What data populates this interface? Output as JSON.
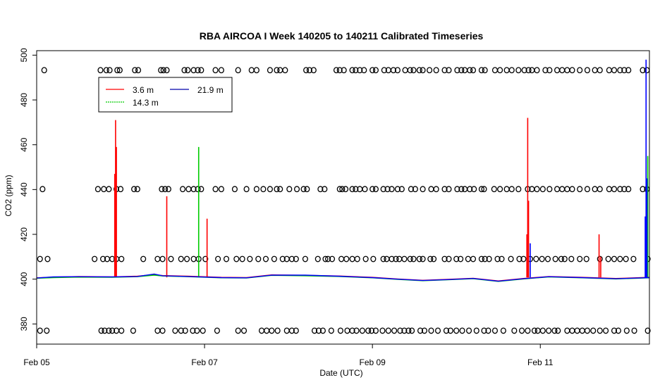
{
  "chart_data": {
    "type": "line",
    "title": "RBA AIRCOA I  Week 140205 to 140211  Calibrated Timeseries",
    "xlabel": "Date (UTC)",
    "ylabel": "CO2 (ppm)",
    "xlim": [
      0,
      7.3
    ],
    "ylim": [
      371,
      502
    ],
    "x_ticks": [
      {
        "value": 0,
        "label": "Feb 05"
      },
      {
        "value": 2,
        "label": "Feb 07"
      },
      {
        "value": 4,
        "label": "Feb 09"
      },
      {
        "value": 6,
        "label": "Feb 11"
      }
    ],
    "y_ticks": [
      380,
      400,
      420,
      440,
      460,
      480,
      500
    ],
    "grid": false,
    "legend_position": "top-left",
    "series": [
      {
        "name": "3.6 m",
        "color": "#ff0000",
        "baseline": [
          [
            0,
            400.6
          ],
          [
            0.2,
            400.9
          ],
          [
            0.5,
            401.2
          ],
          [
            0.9,
            401
          ],
          [
            1.2,
            401.3
          ],
          [
            1.4,
            402
          ],
          [
            1.5,
            401.6
          ],
          [
            1.8,
            401.3
          ],
          [
            2.2,
            400.8
          ],
          [
            2.5,
            400.7
          ],
          [
            2.8,
            401.9
          ],
          [
            3.2,
            401.7
          ],
          [
            3.6,
            401.4
          ],
          [
            4,
            400.8
          ],
          [
            4.3,
            400.1
          ],
          [
            4.6,
            399.5
          ],
          [
            4.9,
            399.9
          ],
          [
            5.2,
            400.4
          ],
          [
            5.5,
            399.2
          ],
          [
            5.8,
            400.3
          ],
          [
            6.1,
            401.2
          ],
          [
            6.5,
            400.8
          ],
          [
            6.9,
            400.3
          ],
          [
            7.3,
            400.8
          ]
        ],
        "spikes": [
          [
            0.94,
            471
          ],
          [
            0.95,
            459
          ],
          [
            0.93,
            447
          ],
          [
            1.55,
            437
          ],
          [
            2.03,
            427
          ],
          [
            5.85,
            472
          ],
          [
            5.86,
            435
          ],
          [
            5.84,
            420
          ],
          [
            6.7,
            420
          ],
          [
            6.72,
            410
          ]
        ]
      },
      {
        "name": "14.3 m",
        "color": "#00cc00",
        "baseline": [
          [
            0,
            400.4
          ],
          [
            0.2,
            400.7
          ],
          [
            0.5,
            400.9
          ],
          [
            0.9,
            400.8
          ],
          [
            1.2,
            401.1
          ],
          [
            1.4,
            401.8
          ],
          [
            1.5,
            401.4
          ],
          [
            1.8,
            401.1
          ],
          [
            2.2,
            400.6
          ],
          [
            2.5,
            400.5
          ],
          [
            2.8,
            401.7
          ],
          [
            3.2,
            401.5
          ],
          [
            3.6,
            401.2
          ],
          [
            4,
            400.6
          ],
          [
            4.3,
            399.9
          ],
          [
            4.6,
            399.3
          ],
          [
            4.9,
            399.7
          ],
          [
            5.2,
            400.2
          ],
          [
            5.5,
            399
          ],
          [
            5.8,
            400.1
          ],
          [
            6.1,
            401
          ],
          [
            6.5,
            400.6
          ],
          [
            6.9,
            400.1
          ],
          [
            7.3,
            400.6
          ]
        ],
        "spikes": [
          [
            1.93,
            459
          ],
          [
            7.28,
            455
          ],
          [
            7.27,
            430
          ]
        ]
      },
      {
        "name": "21.9 m",
        "color": "#0000ff",
        "baseline": [
          [
            0,
            400.5
          ],
          [
            0.2,
            401
          ],
          [
            0.5,
            401.1
          ],
          [
            0.9,
            401
          ],
          [
            1.2,
            401.2
          ],
          [
            1.4,
            402.3
          ],
          [
            1.5,
            401.5
          ],
          [
            1.8,
            401.2
          ],
          [
            2.2,
            400.7
          ],
          [
            2.5,
            400.6
          ],
          [
            2.8,
            401.8
          ],
          [
            3.2,
            401.8
          ],
          [
            3.6,
            401.3
          ],
          [
            4,
            400.7
          ],
          [
            4.3,
            400
          ],
          [
            4.6,
            399.4
          ],
          [
            4.9,
            399.8
          ],
          [
            5.2,
            400.3
          ],
          [
            5.5,
            399.1
          ],
          [
            5.8,
            400.2
          ],
          [
            6.1,
            401.1
          ],
          [
            6.5,
            400.7
          ],
          [
            6.9,
            400.2
          ],
          [
            7.3,
            400.7
          ]
        ],
        "spikes": [
          [
            7.26,
            498
          ],
          [
            7.27,
            445
          ],
          [
            7.25,
            428
          ],
          [
            5.88,
            416
          ]
        ]
      }
    ],
    "calibration_points": {
      "marker": "open-circle",
      "levels": [
        {
          "y": 493.3,
          "x": [
            0.09,
            0.76,
            0.83,
            0.87,
            0.96,
            0.99,
            1.17,
            1.21,
            1.48,
            1.51,
            1.55,
            1.76,
            1.8,
            1.87,
            1.92,
            1.96,
            2.13,
            2.2,
            2.4,
            2.56,
            2.62,
            2.78,
            2.86,
            2.9,
            2.96,
            3.21,
            3.25,
            3.3,
            3.57,
            3.61,
            3.66,
            3.76,
            3.8,
            3.85,
            3.9,
            4,
            4.04,
            4.14,
            4.19,
            4.25,
            4.3,
            4.39,
            4.45,
            4.49,
            4.56,
            4.6,
            4.68,
            4.76,
            4.86,
            4.91,
            5.01,
            5.06,
            5.1,
            5.16,
            5.2,
            5.3,
            5.34,
            5.46,
            5.52,
            5.6,
            5.66,
            5.74,
            5.81,
            5.86,
            5.9,
            5.96,
            6.06,
            6.11,
            6.2,
            6.26,
            6.32,
            6.38,
            6.47,
            6.56,
            6.65,
            6.71,
            6.82,
            6.88,
            6.95,
            7,
            7.05,
            7.22,
            7.27
          ]
        },
        {
          "y": 440.2,
          "x": [
            0.07,
            0.73,
            0.8,
            0.86,
            0.95,
            1,
            1.16,
            1.2,
            1.49,
            1.53,
            1.57,
            1.74,
            1.81,
            1.87,
            1.92,
            1.96,
            2.13,
            2.2,
            2.36,
            2.5,
            2.62,
            2.7,
            2.78,
            2.86,
            2.9,
            3.01,
            3.1,
            3.18,
            3.22,
            3.38,
            3.43,
            3.61,
            3.64,
            3.68,
            3.76,
            3.8,
            3.85,
            3.91,
            4,
            4.04,
            4.13,
            4.18,
            4.23,
            4.3,
            4.35,
            4.46,
            4.51,
            4.6,
            4.7,
            4.76,
            4.86,
            4.91,
            5.01,
            5.06,
            5.1,
            5.16,
            5.21,
            5.3,
            5.33,
            5.45,
            5.52,
            5.6,
            5.66,
            5.74,
            5.85,
            5.9,
            5.96,
            6.03,
            6.11,
            6.2,
            6.26,
            6.32,
            6.38,
            6.47,
            6.56,
            6.65,
            6.71,
            6.82,
            6.88,
            6.95,
            7,
            7.05,
            7.22,
            7.27
          ]
        },
        {
          "y": 409,
          "x": [
            0.04,
            0.13,
            0.69,
            0.79,
            0.84,
            0.9,
            0.95,
            1.01,
            1.27,
            1.44,
            1.5,
            1.6,
            1.72,
            1.79,
            1.87,
            1.93,
            2.01,
            2.16,
            2.26,
            2.38,
            2.45,
            2.54,
            2.64,
            2.73,
            2.83,
            2.93,
            2.98,
            3.04,
            3.09,
            3.2,
            3.35,
            3.44,
            3.47,
            3.52,
            3.63,
            3.69,
            3.76,
            3.82,
            3.92,
            4.01,
            4.13,
            4.17,
            4.23,
            4.28,
            4.32,
            4.38,
            4.45,
            4.49,
            4.56,
            4.6,
            4.69,
            4.73,
            4.86,
            4.91,
            5,
            5.05,
            5.14,
            5.2,
            5.3,
            5.34,
            5.39,
            5.49,
            5.54,
            5.65,
            5.75,
            5.8,
            5.88,
            5.95,
            6.02,
            6.09,
            6.18,
            6.25,
            6.29,
            6.37,
            6.47,
            6.55,
            6.71,
            6.81,
            6.88,
            6.95,
            7.02,
            7.11,
            7.28
          ]
        },
        {
          "y": 377,
          "x": [
            0.04,
            0.12,
            0.77,
            0.81,
            0.86,
            0.9,
            0.95,
            1.01,
            1.15,
            1.44,
            1.5,
            1.65,
            1.72,
            1.77,
            1.86,
            1.91,
            1.98,
            2.15,
            2.4,
            2.47,
            2.68,
            2.74,
            2.8,
            2.87,
            2.98,
            3.04,
            3.09,
            3.31,
            3.36,
            3.41,
            3.51,
            3.62,
            3.7,
            3.76,
            3.81,
            3.88,
            3.95,
            3.99,
            4.04,
            4.12,
            4.19,
            4.26,
            4.33,
            4.38,
            4.43,
            4.47,
            4.57,
            4.62,
            4.7,
            4.78,
            4.88,
            4.93,
            5,
            5.07,
            5.15,
            5.24,
            5.33,
            5.38,
            5.46,
            5.56,
            5.69,
            5.78,
            5.85,
            5.93,
            5.97,
            6.03,
            6.1,
            6.17,
            6.21,
            6.32,
            6.38,
            6.44,
            6.5,
            6.56,
            6.63,
            6.71,
            6.78,
            6.88,
            6.93,
            7.03,
            7.12,
            7.28
          ]
        }
      ]
    }
  }
}
